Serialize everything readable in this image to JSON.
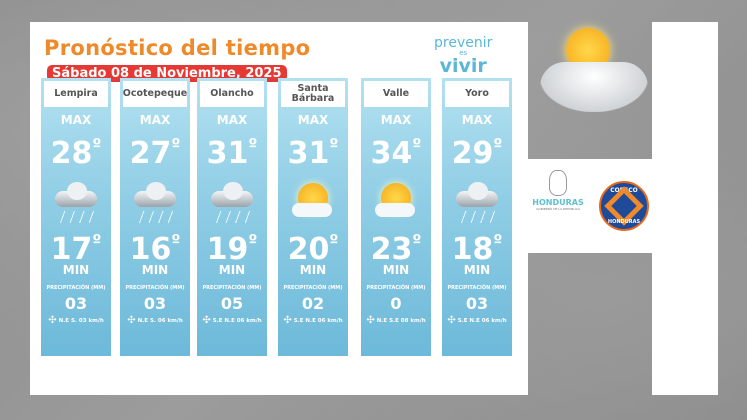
{
  "header": {
    "title": "Pronóstico del tiempo",
    "date": "Sábado 08 de Noviembre, 2025",
    "brand": {
      "line1": "prevenir",
      "line2": "es",
      "line3": "vivir"
    }
  },
  "labels": {
    "max": "MAX",
    "min": "MIN",
    "precip": "PRECIPITACIÓN (MM)",
    "degree": "º"
  },
  "cities": [
    {
      "name": "Lempira",
      "max": "28",
      "min": "17",
      "condition": "rain-cloud",
      "precip": "03",
      "wind": "N.E  S.  03 km/h"
    },
    {
      "name": "Ocotepeque",
      "max": "27",
      "min": "16",
      "condition": "rain-cloud",
      "precip": "03",
      "wind": "N.E  S.  06 km/h"
    },
    {
      "name": "Olancho",
      "max": "31",
      "min": "19",
      "condition": "rain-cloud",
      "precip": "05",
      "wind": "S.E  N.E 06 km/h"
    },
    {
      "name": "Santa Bárbara",
      "max": "31",
      "min": "20",
      "condition": "sun-cloud",
      "precip": "02",
      "wind": "S.E  N.E 06  km/h"
    },
    {
      "name": "Valle",
      "max": "34",
      "min": "23",
      "condition": "sun-cloud",
      "precip": "0",
      "wind": "N.E S.E 08 km/h"
    },
    {
      "name": "Yoro",
      "max": "29",
      "min": "18",
      "condition": "rain-cloud",
      "precip": "03",
      "wind": "S.E  N.E 06 km/h"
    }
  ],
  "logos": {
    "honduras": "HONDURAS",
    "honduras_sub": "GOBIERNO DE LA REPÚBLICA",
    "copeco": "COPECO",
    "copeco_sub": "HONDURAS"
  },
  "colors": {
    "title": "#ef8a2a",
    "date_bg": "#e53935",
    "column": "#8fcde5",
    "brand": "#5cb6d6"
  }
}
